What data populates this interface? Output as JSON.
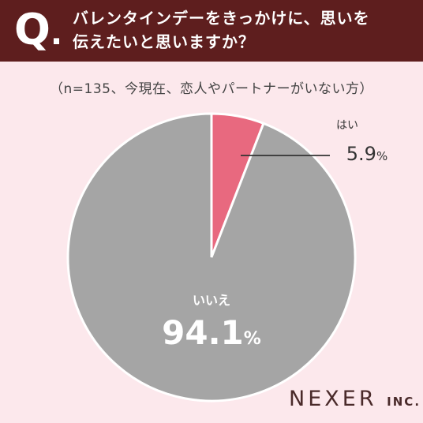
{
  "header": {
    "q_letter": "Q",
    "q_dot": ".",
    "question_line1": "バレンタインデーをきっかけに、思いを",
    "question_line2": "伝えたいと思いますか？"
  },
  "note": "（n=135、今現在、恋人やパートナーがいない方）",
  "chart_data": {
    "type": "pie",
    "slices": [
      {
        "label": "はい",
        "value": 5.9,
        "color": "#e8697f"
      },
      {
        "label": "いいえ",
        "value": 94.1,
        "color": "#a5a5a5"
      }
    ],
    "unit": "%",
    "start": "12 o'clock",
    "direction": "clockwise",
    "legend": "none"
  },
  "brand": {
    "name": "NEXER",
    "suffix": "INC."
  }
}
